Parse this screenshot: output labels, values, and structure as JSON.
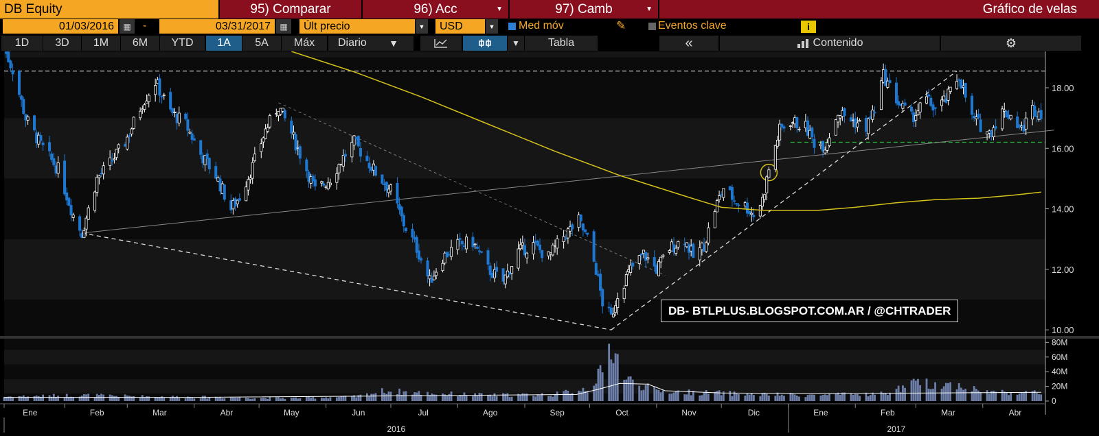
{
  "header": {
    "ticker": "DB Equity",
    "buttons": [
      {
        "label": "95) Comparar",
        "has_menu": false
      },
      {
        "label": "96) Acc",
        "has_menu": true
      },
      {
        "label": "97) Camb",
        "has_menu": true
      }
    ],
    "title": "Gráfico de velas"
  },
  "controls": {
    "start_date": "01/03/2016",
    "date_sep": "-",
    "end_date": "03/31/2017",
    "price_field": "Últ precio",
    "currency": "USD",
    "moving_avg_label": "Med móv",
    "moving_avg_checked": true,
    "key_events_label": "Eventos clave",
    "key_events_checked": false,
    "info_icon": "i"
  },
  "toolbar": {
    "periods": [
      "1D",
      "3D",
      "1M",
      "6M",
      "YTD",
      "1A",
      "5A",
      "Máx"
    ],
    "active_period": "1A",
    "frequency": "Diario",
    "table_label": "Tabla",
    "collapse_label": "«",
    "content_label": "Contenido"
  },
  "watermark": "DB- BTLPLUS.BLOGSPOT.COM.AR / @CHTRADER",
  "colors": {
    "accent": "#f5a623",
    "header_red": "#8a0f1e",
    "up_candle": "#ffffff",
    "down_candle": "#1e78d2",
    "moving_avg": "#d4c21a",
    "support_line": "#27c33c"
  },
  "chart_data": {
    "type": "candlestick",
    "x_range": [
      "2016-01-04",
      "2017-04-30"
    ],
    "price_axis": {
      "ticks": [
        10.0,
        12.0,
        14.0,
        16.0,
        18.0
      ],
      "tick_labels": [
        "10.00",
        "12.00",
        "14.00",
        "16.00",
        "18.00"
      ],
      "ylim": [
        9.8,
        19.2
      ]
    },
    "volume_axis": {
      "ticks": [
        0,
        20,
        40,
        60,
        80
      ],
      "tick_labels": [
        "0",
        "20M",
        "40M",
        "60M",
        "80M"
      ],
      "ylim": [
        0,
        85
      ]
    },
    "month_labels": [
      "Ene",
      "Feb",
      "Mar",
      "Abr",
      "May",
      "Jun",
      "Jul",
      "Ago",
      "Sep",
      "Oct",
      "Nov",
      "Dic",
      "Ene",
      "Feb",
      "Mar",
      "Abr"
    ],
    "year_labels": [
      "2016",
      "2017"
    ],
    "price_anchors": [
      [
        "2016-01-04",
        19.3
      ],
      [
        "2016-01-08",
        18.6
      ],
      [
        "2016-01-14",
        17.0
      ],
      [
        "2016-01-21",
        16.1
      ],
      [
        "2016-01-29",
        15.3
      ],
      [
        "2016-02-05",
        13.8
      ],
      [
        "2016-02-09",
        13.2
      ],
      [
        "2016-02-16",
        15.0
      ],
      [
        "2016-02-22",
        15.5
      ],
      [
        "2016-02-29",
        16.2
      ],
      [
        "2016-03-08",
        17.5
      ],
      [
        "2016-03-14",
        18.2
      ],
      [
        "2016-03-21",
        17.2
      ],
      [
        "2016-03-28",
        16.8
      ],
      [
        "2016-04-04",
        15.8
      ],
      [
        "2016-04-11",
        15.1
      ],
      [
        "2016-04-18",
        14.0
      ],
      [
        "2016-04-22",
        14.4
      ],
      [
        "2016-04-28",
        15.4
      ],
      [
        "2016-05-04",
        16.6
      ],
      [
        "2016-05-10",
        17.4
      ],
      [
        "2016-05-16",
        16.5
      ],
      [
        "2016-05-23",
        15.3
      ],
      [
        "2016-05-27",
        14.6
      ],
      [
        "2016-06-03",
        15.0
      ],
      [
        "2016-06-09",
        15.7
      ],
      [
        "2016-06-14",
        16.2
      ],
      [
        "2016-06-20",
        15.6
      ],
      [
        "2016-06-24",
        15.2
      ],
      [
        "2016-07-01",
        14.6
      ],
      [
        "2016-07-07",
        13.5
      ],
      [
        "2016-07-13",
        12.7
      ],
      [
        "2016-07-19",
        11.6
      ],
      [
        "2016-07-25",
        12.4
      ],
      [
        "2016-08-01",
        12.8
      ],
      [
        "2016-08-08",
        12.9
      ],
      [
        "2016-08-15",
        12.0
      ],
      [
        "2016-08-22",
        11.6
      ],
      [
        "2016-08-29",
        12.6
      ],
      [
        "2016-09-05",
        12.8
      ],
      [
        "2016-09-12",
        12.4
      ],
      [
        "2016-09-19",
        13.1
      ],
      [
        "2016-09-26",
        13.6
      ],
      [
        "2016-09-30",
        13.0
      ],
      [
        "2016-10-04",
        12.0
      ],
      [
        "2016-10-07",
        10.9
      ],
      [
        "2016-10-11",
        10.4
      ],
      [
        "2016-10-14",
        11.2
      ],
      [
        "2016-10-20",
        12.0
      ],
      [
        "2016-10-26",
        12.5
      ],
      [
        "2016-11-01",
        12.0
      ],
      [
        "2016-11-07",
        12.7
      ],
      [
        "2016-11-14",
        13.0
      ],
      [
        "2016-11-18",
        12.4
      ],
      [
        "2016-11-23",
        12.8
      ],
      [
        "2016-11-28",
        14.0
      ],
      [
        "2016-12-02",
        14.7
      ],
      [
        "2016-12-07",
        14.3
      ],
      [
        "2016-12-12",
        14.1
      ],
      [
        "2016-12-16",
        13.8
      ],
      [
        "2016-12-20",
        14.3
      ],
      [
        "2016-12-23",
        15.3
      ],
      [
        "2016-12-28",
        16.6
      ],
      [
        "2017-01-02",
        16.9
      ],
      [
        "2017-01-09",
        16.7
      ],
      [
        "2017-01-13",
        16.2
      ],
      [
        "2017-01-18",
        16.1
      ],
      [
        "2017-01-24",
        17.2
      ],
      [
        "2017-01-31",
        16.9
      ],
      [
        "2017-02-06",
        16.7
      ],
      [
        "2017-02-10",
        17.3
      ],
      [
        "2017-02-14",
        18.4
      ],
      [
        "2017-02-21",
        17.5
      ],
      [
        "2017-02-27",
        17.0
      ],
      [
        "2017-03-06",
        17.6
      ],
      [
        "2017-03-10",
        17.3
      ],
      [
        "2017-03-15",
        17.6
      ],
      [
        "2017-03-21",
        18.4
      ],
      [
        "2017-03-27",
        17.0
      ],
      [
        "2017-04-04",
        16.5
      ],
      [
        "2017-04-10",
        17.2
      ],
      [
        "2017-04-14",
        17.1
      ],
      [
        "2017-04-19",
        16.6
      ],
      [
        "2017-04-24",
        17.3
      ],
      [
        "2017-04-28",
        17.2
      ]
    ],
    "moving_average": [
      [
        "2016-05-16",
        19.2
      ],
      [
        "2016-06-15",
        18.5
      ],
      [
        "2016-07-15",
        17.7
      ],
      [
        "2016-08-15",
        16.8
      ],
      [
        "2016-09-15",
        15.9
      ],
      [
        "2016-10-15",
        15.1
      ],
      [
        "2016-11-15",
        14.4
      ],
      [
        "2016-12-01",
        14.05
      ],
      [
        "2016-12-20",
        13.95
      ],
      [
        "2017-01-15",
        13.95
      ],
      [
        "2017-02-01",
        14.05
      ],
      [
        "2017-02-20",
        14.2
      ],
      [
        "2017-03-10",
        14.3
      ],
      [
        "2017-03-30",
        14.35
      ],
      [
        "2017-04-15",
        14.45
      ],
      [
        "2017-04-28",
        14.55
      ]
    ],
    "volume_anchors": [
      [
        "2016-01-04",
        6
      ],
      [
        "2016-02-08",
        8
      ],
      [
        "2016-03-15",
        6
      ],
      [
        "2016-04-15",
        5
      ],
      [
        "2016-05-15",
        4
      ],
      [
        "2016-06-15",
        6
      ],
      [
        "2016-06-28",
        14
      ],
      [
        "2016-07-15",
        11
      ],
      [
        "2016-08-15",
        8
      ],
      [
        "2016-09-15",
        9
      ],
      [
        "2016-09-30",
        18
      ],
      [
        "2016-10-07",
        40
      ],
      [
        "2016-10-11",
        78
      ],
      [
        "2016-10-18",
        30
      ],
      [
        "2016-11-01",
        14
      ],
      [
        "2016-11-15",
        12
      ],
      [
        "2016-12-01",
        11
      ],
      [
        "2016-12-15",
        9
      ],
      [
        "2017-01-15",
        8
      ],
      [
        "2017-02-14",
        10
      ],
      [
        "2017-03-01",
        24
      ],
      [
        "2017-03-21",
        22
      ],
      [
        "2017-04-01",
        13
      ],
      [
        "2017-04-28",
        11
      ]
    ],
    "volume_average": [
      [
        "2016-01-04",
        5
      ],
      [
        "2016-04-01",
        5
      ],
      [
        "2016-07-01",
        7
      ],
      [
        "2016-09-25",
        9
      ],
      [
        "2016-10-05",
        16
      ],
      [
        "2016-10-15",
        24
      ],
      [
        "2016-10-28",
        23
      ],
      [
        "2016-11-05",
        14
      ],
      [
        "2016-12-01",
        11
      ],
      [
        "2017-01-15",
        10
      ],
      [
        "2017-03-10",
        11
      ],
      [
        "2017-04-28",
        12
      ]
    ],
    "resistance_level": 18.55,
    "support_level": 16.2,
    "support_start": "2017-01-02",
    "trendlines": [
      {
        "style": "solid",
        "from": [
          "2016-02-09",
          13.2
        ],
        "to": [
          "2017-05-04",
          16.6
        ]
      },
      {
        "style": "dashed",
        "from": [
          "2016-02-09",
          13.2
        ],
        "to": [
          "2016-10-11",
          10.0
        ]
      },
      {
        "style": "dashed",
        "from": [
          "2016-10-11",
          10.0
        ],
        "to": [
          "2017-03-20",
          18.55
        ]
      },
      {
        "style": "dotted",
        "from": [
          "2016-05-10",
          17.5
        ],
        "to": [
          "2016-11-05",
          11.8
        ]
      }
    ],
    "highlight": {
      "date": "2016-12-23",
      "price": 15.2
    }
  }
}
